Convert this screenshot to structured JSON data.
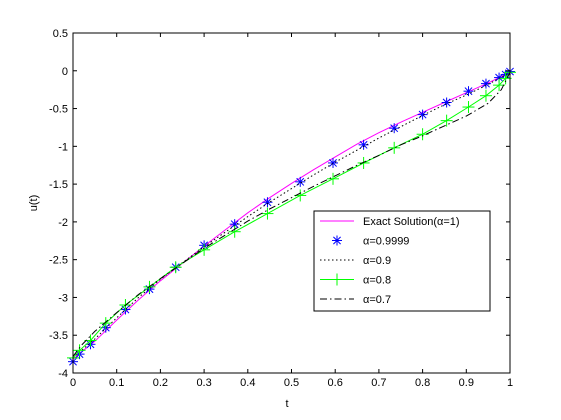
{
  "chart_data": {
    "type": "line",
    "xlabel": "t",
    "ylabel": "u(t)",
    "xlim": [
      0,
      1
    ],
    "ylim": [
      -4,
      0.5
    ],
    "xticks": [
      "0",
      "0.1",
      "0.2",
      "0.3",
      "0.4",
      "0.5",
      "0.6",
      "0.7",
      "0.8",
      "0.9",
      "1"
    ],
    "yticks": [
      "0.5",
      "0",
      "-0.5",
      "-1",
      "-1.5",
      "-2",
      "-2.5",
      "-3",
      "-3.5",
      "-4"
    ],
    "xtick_values": [
      0,
      0.1,
      0.2,
      0.3,
      0.4,
      0.5,
      0.6,
      0.7,
      0.8,
      0.9,
      1
    ],
    "ytick_values": [
      0.5,
      0,
      -0.5,
      -1,
      -1.5,
      -2,
      -2.5,
      -3,
      -3.5,
      -4
    ],
    "grid": false,
    "legend_position": "lower-right",
    "series": [
      {
        "name": "Exact Solution(α=1)",
        "color": "#ff00ff",
        "line": "solid",
        "marker": "none",
        "x": [
          0,
          0.02,
          0.05,
          0.1,
          0.15,
          0.2,
          0.25,
          0.3,
          0.35,
          0.4,
          0.45,
          0.5,
          0.55,
          0.6,
          0.65,
          0.7,
          0.75,
          0.8,
          0.85,
          0.9,
          0.95,
          1
        ],
        "y": [
          -3.82,
          -3.72,
          -3.58,
          -3.3,
          -3.03,
          -2.78,
          -2.55,
          -2.32,
          -2.1,
          -1.88,
          -1.68,
          -1.49,
          -1.31,
          -1.14,
          -0.97,
          -0.82,
          -0.68,
          -0.55,
          -0.42,
          -0.29,
          -0.16,
          -0.02
        ]
      },
      {
        "name": "α=0.9999",
        "color": "#0000ff",
        "line": "none",
        "marker": "asterisk",
        "x": [
          0,
          0.015,
          0.04,
          0.075,
          0.12,
          0.175,
          0.235,
          0.3,
          0.37,
          0.445,
          0.52,
          0.595,
          0.665,
          0.735,
          0.8,
          0.855,
          0.905,
          0.945,
          0.975,
          0.99,
          1
        ],
        "y": [
          -3.85,
          -3.75,
          -3.62,
          -3.4,
          -3.16,
          -2.89,
          -2.6,
          -2.31,
          -2.03,
          -1.74,
          -1.47,
          -1.22,
          -0.98,
          -0.76,
          -0.58,
          -0.42,
          -0.27,
          -0.17,
          -0.09,
          -0.05,
          -0.01
        ]
      },
      {
        "name": "α=0.9",
        "color": "#000000",
        "line": "dotted",
        "marker": "none",
        "x": [
          0,
          0.02,
          0.05,
          0.1,
          0.15,
          0.2,
          0.25,
          0.3,
          0.35,
          0.4,
          0.45,
          0.5,
          0.55,
          0.6,
          0.65,
          0.7,
          0.75,
          0.8,
          0.85,
          0.9,
          0.95,
          1
        ],
        "y": [
          -3.8,
          -3.7,
          -3.55,
          -3.27,
          -3.0,
          -2.76,
          -2.54,
          -2.33,
          -2.13,
          -1.93,
          -1.74,
          -1.56,
          -1.38,
          -1.21,
          -1.05,
          -0.89,
          -0.74,
          -0.59,
          -0.45,
          -0.32,
          -0.18,
          -0.02
        ]
      },
      {
        "name": "α=0.8",
        "color": "#00ff00",
        "line": "solid",
        "marker": "plus",
        "x": [
          0,
          0.015,
          0.04,
          0.075,
          0.12,
          0.175,
          0.235,
          0.3,
          0.37,
          0.445,
          0.52,
          0.595,
          0.665,
          0.735,
          0.8,
          0.855,
          0.905,
          0.945,
          0.975,
          0.99,
          1
        ],
        "y": [
          -3.8,
          -3.7,
          -3.57,
          -3.34,
          -3.1,
          -2.86,
          -2.6,
          -2.37,
          -2.13,
          -1.89,
          -1.65,
          -1.43,
          -1.22,
          -1.02,
          -0.84,
          -0.66,
          -0.48,
          -0.33,
          -0.19,
          -0.1,
          -0.02
        ]
      },
      {
        "name": "α=0.7",
        "color": "#000000",
        "line": "dashdot",
        "marker": "none",
        "x": [
          0,
          0.02,
          0.05,
          0.1,
          0.15,
          0.2,
          0.25,
          0.3,
          0.35,
          0.4,
          0.45,
          0.5,
          0.55,
          0.6,
          0.65,
          0.7,
          0.75,
          0.8,
          0.85,
          0.9,
          0.95,
          0.98,
          1
        ],
        "y": [
          -3.78,
          -3.63,
          -3.45,
          -3.2,
          -2.96,
          -2.75,
          -2.55,
          -2.35,
          -2.17,
          -1.99,
          -1.83,
          -1.68,
          -1.53,
          -1.39,
          -1.25,
          -1.12,
          -0.98,
          -0.86,
          -0.73,
          -0.6,
          -0.43,
          -0.25,
          -0.02
        ]
      }
    ]
  }
}
